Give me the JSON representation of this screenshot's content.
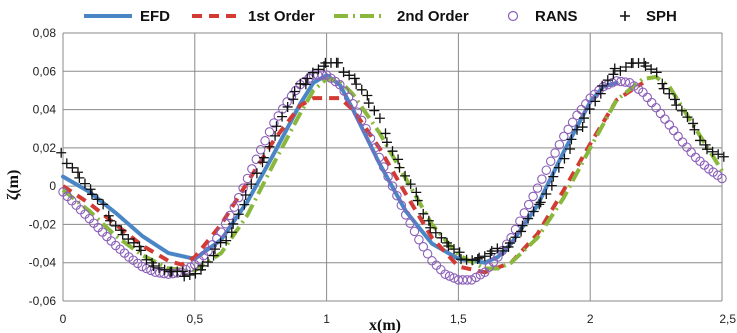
{
  "chart_data": {
    "type": "line",
    "xlabel": "x(m)",
    "ylabel": "ζ(m)",
    "xlim": [
      0,
      2.5
    ],
    "ylim": [
      -0.06,
      0.08
    ],
    "x_ticks": [
      0,
      0.5,
      1,
      1.5,
      2,
      2.5
    ],
    "x_tick_labels": [
      "0",
      "0,5",
      "1",
      "1,5",
      "2",
      "2,5"
    ],
    "y_ticks": [
      -0.06,
      -0.04,
      -0.02,
      0,
      0.02,
      0.04,
      0.06,
      0.08
    ],
    "y_tick_labels": [
      "-0,06",
      "-0,04",
      "-0,02",
      "0",
      "0,02",
      "0,04",
      "0,06",
      "0,08"
    ],
    "grid": true,
    "legend_position": "top",
    "colors": {
      "efd": "#4a86c6",
      "first_order": "#d23a33",
      "second_order": "#8ab83c",
      "rans": "#8b5fb8",
      "sph": "#111111",
      "grid": "#8a8a8a"
    },
    "series": [
      {
        "name": "EFD",
        "style": "solid-line",
        "x": [
          0,
          0.1,
          0.2,
          0.3,
          0.4,
          0.5,
          0.6,
          0.7,
          0.8,
          0.9,
          0.95,
          1.0,
          1.05,
          1.1,
          1.2,
          1.3,
          1.4,
          1.5,
          1.6,
          1.65,
          1.7,
          1.8,
          1.9,
          2.0,
          2.05,
          2.1
        ],
        "y": [
          0.005,
          -0.003,
          -0.014,
          -0.026,
          -0.035,
          -0.038,
          -0.028,
          -0.008,
          0.017,
          0.043,
          0.054,
          0.058,
          0.053,
          0.04,
          0.012,
          -0.013,
          -0.03,
          -0.038,
          -0.04,
          -0.037,
          -0.03,
          -0.01,
          0.018,
          0.044,
          0.052,
          0.054
        ]
      },
      {
        "name": "1st Order",
        "style": "dashed-line",
        "x": [
          0,
          0.1,
          0.2,
          0.3,
          0.4,
          0.45,
          0.5,
          0.6,
          0.7,
          0.8,
          0.9,
          0.95,
          1.0,
          1.05,
          1.1,
          1.2,
          1.3,
          1.4,
          1.5,
          1.6,
          1.7,
          1.8,
          1.9,
          2.0,
          2.1,
          2.2
        ],
        "y": [
          0,
          -0.009,
          -0.02,
          -0.031,
          -0.039,
          -0.041,
          -0.037,
          -0.02,
          0.002,
          0.024,
          0.042,
          0.046,
          0.046,
          0.046,
          0.04,
          0.02,
          -0.004,
          -0.027,
          -0.042,
          -0.045,
          -0.04,
          -0.025,
          -0.002,
          0.022,
          0.045,
          0.054
        ]
      },
      {
        "name": "2nd Order",
        "style": "dash-dot-line",
        "x": [
          0,
          0.1,
          0.2,
          0.3,
          0.4,
          0.5,
          0.6,
          0.7,
          0.8,
          0.9,
          0.95,
          1.0,
          1.05,
          1.1,
          1.2,
          1.3,
          1.4,
          1.5,
          1.6,
          1.65,
          1.7,
          1.8,
          1.9,
          2.0,
          2.1,
          2.2,
          2.25,
          2.3,
          2.4,
          2.5
        ],
        "y": [
          -0.002,
          -0.013,
          -0.026,
          -0.036,
          -0.043,
          -0.044,
          -0.035,
          -0.015,
          0.012,
          0.038,
          0.05,
          0.056,
          0.055,
          0.048,
          0.028,
          0.004,
          -0.02,
          -0.036,
          -0.043,
          -0.043,
          -0.04,
          -0.027,
          -0.006,
          0.02,
          0.045,
          0.056,
          0.057,
          0.052,
          0.03,
          0.008
        ]
      },
      {
        "name": "RANS",
        "style": "open-circles",
        "x": [
          0,
          0.05,
          0.1,
          0.15,
          0.2,
          0.25,
          0.3,
          0.35,
          0.4,
          0.45,
          0.5,
          0.55,
          0.6,
          0.65,
          0.7,
          0.75,
          0.8,
          0.85,
          0.9,
          0.95,
          1.0,
          1.05,
          1.1,
          1.15,
          1.2,
          1.25,
          1.3,
          1.35,
          1.4,
          1.45,
          1.5,
          1.55,
          1.6,
          1.65,
          1.7,
          1.75,
          1.8,
          1.85,
          1.9,
          1.95,
          2.0,
          2.05,
          2.1,
          2.15,
          2.2,
          2.25,
          2.3,
          2.35,
          2.4,
          2.45,
          2.5
        ],
        "y": [
          -0.003,
          -0.01,
          -0.017,
          -0.024,
          -0.031,
          -0.037,
          -0.042,
          -0.045,
          -0.046,
          -0.045,
          -0.041,
          -0.034,
          -0.024,
          -0.011,
          0.004,
          0.019,
          0.033,
          0.044,
          0.053,
          0.058,
          0.058,
          0.053,
          0.043,
          0.03,
          0.015,
          0.0,
          -0.015,
          -0.028,
          -0.039,
          -0.046,
          -0.049,
          -0.049,
          -0.045,
          -0.037,
          -0.027,
          -0.014,
          -0.001,
          0.013,
          0.026,
          0.037,
          0.046,
          0.052,
          0.055,
          0.054,
          0.049,
          0.041,
          0.032,
          0.023,
          0.015,
          0.009,
          0.004
        ]
      },
      {
        "name": "SPH",
        "style": "plus-markers",
        "x": [
          0,
          0.05,
          0.1,
          0.15,
          0.2,
          0.25,
          0.3,
          0.35,
          0.4,
          0.45,
          0.5,
          0.55,
          0.6,
          0.65,
          0.7,
          0.75,
          0.8,
          0.85,
          0.9,
          0.95,
          1.0,
          1.05,
          1.1,
          1.15,
          1.2,
          1.25,
          1.3,
          1.35,
          1.4,
          1.45,
          1.5,
          1.55,
          1.6,
          1.65,
          1.7,
          1.75,
          1.8,
          1.85,
          1.9,
          1.95,
          2.0,
          2.05,
          2.1,
          2.15,
          2.2,
          2.25,
          2.3,
          2.35,
          2.4,
          2.45,
          2.5
        ],
        "y": [
          0.016,
          0.008,
          -0.002,
          -0.011,
          -0.02,
          -0.028,
          -0.035,
          -0.041,
          -0.045,
          -0.046,
          -0.045,
          -0.04,
          -0.031,
          -0.019,
          -0.005,
          0.011,
          0.027,
          0.041,
          0.052,
          0.06,
          0.064,
          0.063,
          0.057,
          0.047,
          0.034,
          0.019,
          0.005,
          -0.009,
          -0.021,
          -0.03,
          -0.036,
          -0.038,
          -0.037,
          -0.034,
          -0.029,
          -0.021,
          -0.011,
          0.001,
          0.014,
          0.028,
          0.041,
          0.052,
          0.06,
          0.065,
          0.064,
          0.058,
          0.049,
          0.039,
          0.028,
          0.02,
          0.015
        ]
      }
    ]
  }
}
